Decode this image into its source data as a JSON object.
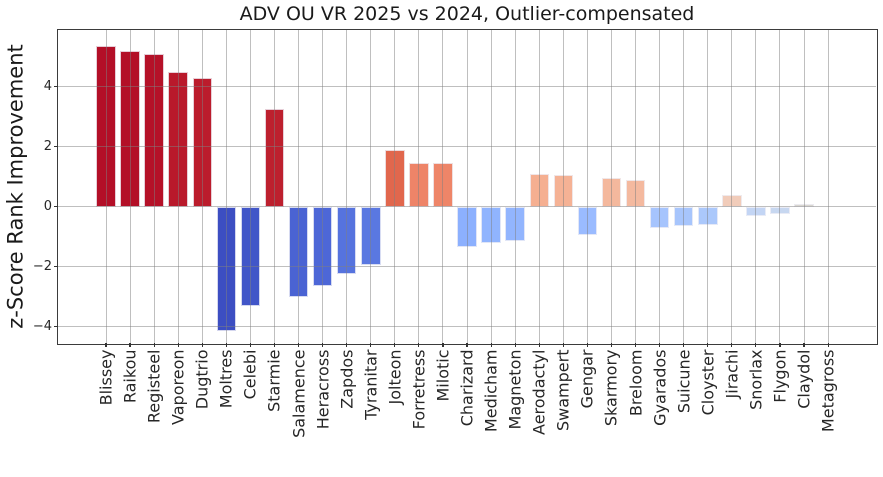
{
  "chart_data": {
    "type": "bar",
    "title": "ADV OU VR 2025 vs 2024, Outlier-compensated",
    "xlabel": "",
    "ylabel": "z-Score Rank Improvement",
    "categories": [
      "Blissey",
      "Raikou",
      "Registeel",
      "Vaporeon",
      "Dugtrio",
      "Moltres",
      "Celebi",
      "Starmie",
      "Salamence",
      "Heracross",
      "Zapdos",
      "Tyranitar",
      "Jolteon",
      "Forretress",
      "Milotic",
      "Charizard",
      "Medicham",
      "Magneton",
      "Aerodactyl",
      "Swampert",
      "Gengar",
      "Skarmory",
      "Breloom",
      "Gyarados",
      "Suicune",
      "Cloyster",
      "Jirachi",
      "Snorlax",
      "Flygon",
      "Claydol",
      "Metagross"
    ],
    "values": [
      5.35,
      5.2,
      5.1,
      4.5,
      4.3,
      -4.15,
      -3.3,
      3.25,
      -3.0,
      -2.65,
      -2.25,
      -1.95,
      1.9,
      1.45,
      1.45,
      -1.35,
      -1.2,
      -1.15,
      1.1,
      1.05,
      -0.95,
      0.95,
      0.9,
      -0.7,
      -0.65,
      -0.6,
      0.4,
      -0.3,
      -0.25,
      0.1,
      0.0
    ],
    "bar_colors": [
      "#b30f27",
      "#b30f27",
      "#b51128",
      "#b9192b",
      "#bb1c2c",
      "#3c4ec2",
      "#4156c8",
      "#bd202e",
      "#4a63d3",
      "#4d67d7",
      "#5673de",
      "#5a78e1",
      "#e1674d",
      "#ee8468",
      "#ee8568",
      "#8cb0fe",
      "#90b4fe",
      "#92b5fe",
      "#f5af91",
      "#f5b295",
      "#9abbff",
      "#f4b89d",
      "#f4b99f",
      "#a6c4fd",
      "#a7c5fc",
      "#abc8fb",
      "#f1ccba",
      "#c3d5f4",
      "#c7d7f0",
      "#d9d7d0",
      "#dddddd"
    ],
    "colormap": "coolwarm",
    "yticks": [
      -4,
      -2,
      0,
      2,
      4
    ],
    "ylim": [
      -4.55,
      5.9
    ],
    "grid": true,
    "legend": "none",
    "accent_colors": {
      "max_positive": "#b40426",
      "max_negative": "#3b4cc0",
      "grid": "#b0b0b0",
      "spine": "#3b3b3b",
      "text": "#262626"
    }
  }
}
